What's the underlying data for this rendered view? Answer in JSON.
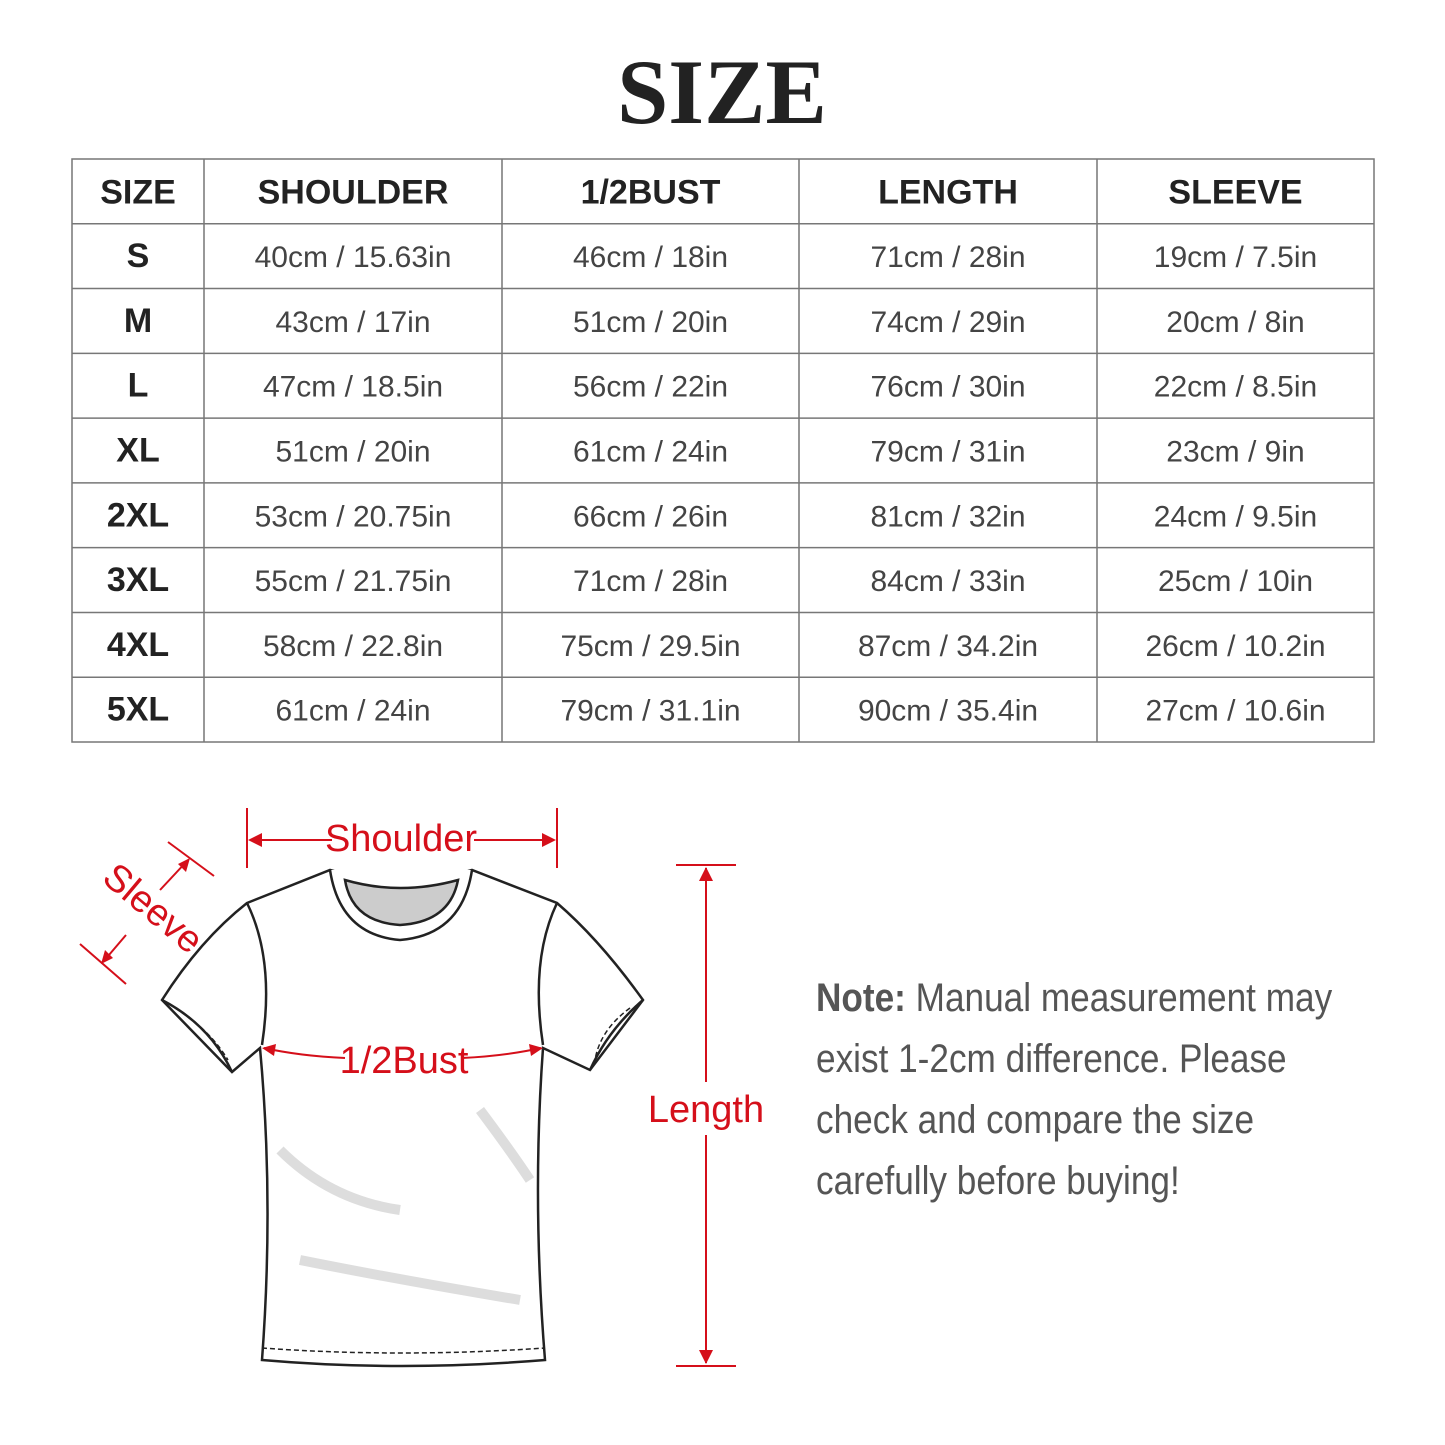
{
  "header": {
    "title": "SIZE"
  },
  "table": {
    "columns": [
      "SIZE",
      "SHOULDER",
      "1/2BUST",
      "LENGTH",
      "SLEEVE"
    ],
    "rows": [
      [
        "S",
        "40cm / 15.63in",
        "46cm / 18in",
        "71cm / 28in",
        "19cm / 7.5in"
      ],
      [
        "M",
        "43cm / 17in",
        "51cm / 20in",
        "74cm / 29in",
        "20cm / 8in"
      ],
      [
        "L",
        "47cm / 18.5in",
        "56cm / 22in",
        "76cm / 30in",
        "22cm / 8.5in"
      ],
      [
        "XL",
        "51cm / 20in",
        "61cm / 24in",
        "79cm / 31in",
        "23cm / 9in"
      ],
      [
        "2XL",
        "53cm / 20.75in",
        "66cm / 26in",
        "81cm / 32in",
        "24cm / 9.5in"
      ],
      [
        "3XL",
        "55cm / 21.75in",
        "71cm / 28in",
        "84cm / 33in",
        "25cm / 10in"
      ],
      [
        "4XL",
        "58cm / 22.8in",
        "75cm / 29.5in",
        "87cm / 34.2in",
        "26cm / 10.2in"
      ],
      [
        "5XL",
        "61cm / 24in",
        "79cm / 31.1in",
        "90cm / 35.4in",
        "27cm / 10.6in"
      ]
    ]
  },
  "diagram": {
    "shoulder": "Shoulder",
    "sleeve": "Sleeve",
    "bust": "1/2Bust",
    "length": "Length"
  },
  "note": {
    "label": "Note:",
    "lines": [
      "Manual measurement may",
      "exist 1-2cm difference. Please",
      "check and compare the size",
      "carefully before buying!"
    ]
  }
}
